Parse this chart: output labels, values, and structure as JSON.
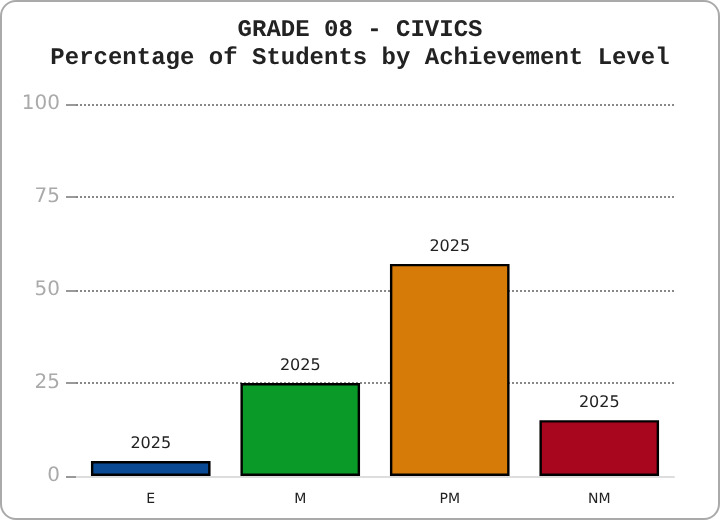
{
  "chart_data": {
    "type": "bar",
    "title": "GRADE 08 - CIVICS",
    "subtitle": "Percentage of Students by Achievement Level",
    "categories": [
      "E",
      "M",
      "PM",
      "NM"
    ],
    "series": [
      {
        "name": "2025",
        "colors": [
          "#0a4a94",
          "#0a9a28",
          "#d77b08",
          "#a8061e"
        ],
        "values": [
          4,
          25,
          57,
          15
        ]
      }
    ],
    "ylim": [
      0,
      100
    ],
    "yticks": [
      0,
      25,
      50,
      75,
      100
    ],
    "grid": "y"
  }
}
